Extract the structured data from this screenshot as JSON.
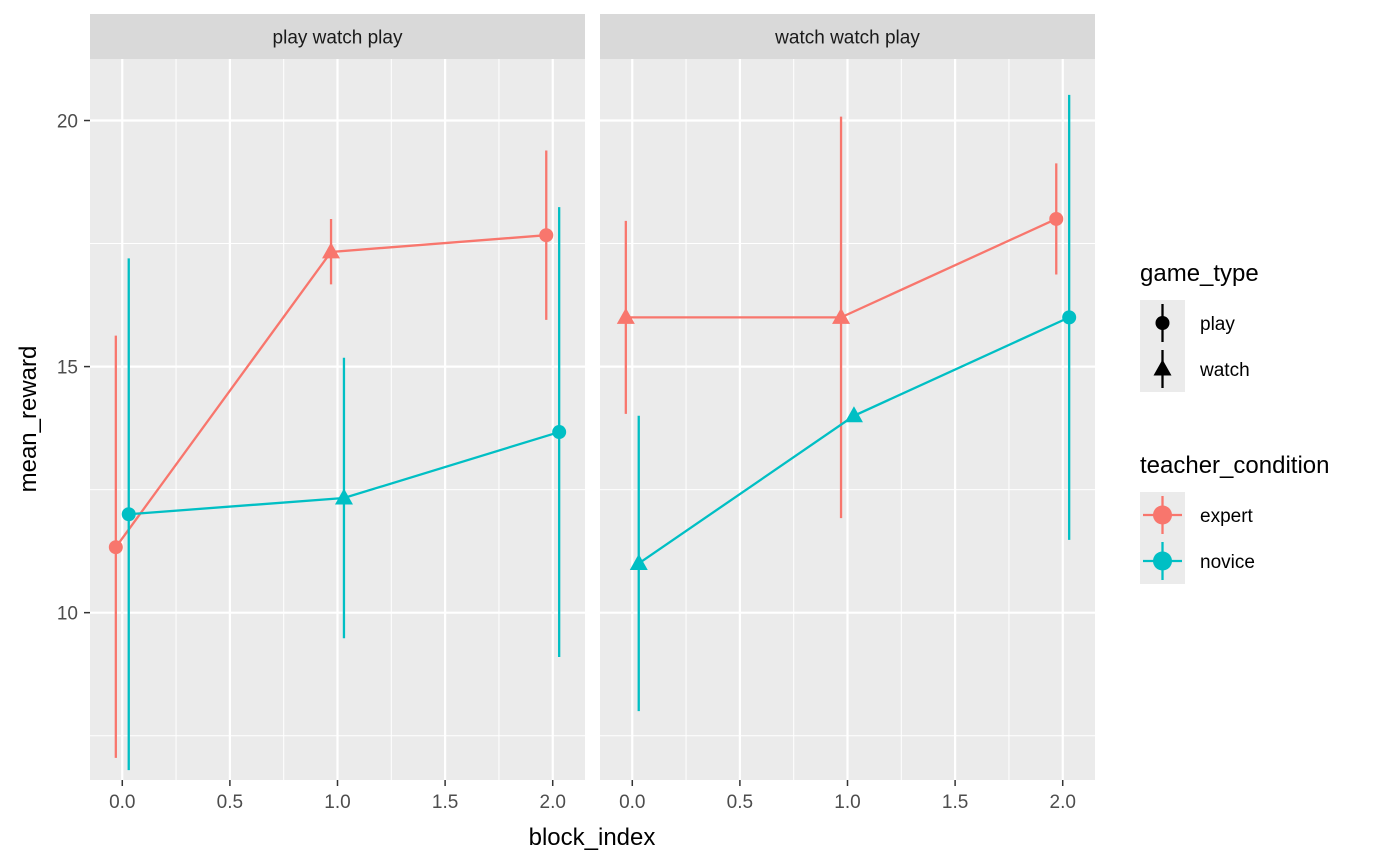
{
  "chart_data": {
    "type": "line",
    "xlabel": "block_index",
    "ylabel": "mean_reward",
    "xlim": [
      -0.15,
      2.15
    ],
    "ylim": [
      6.6,
      21.25
    ],
    "x_ticks": [
      0,
      0.5,
      1,
      1.5,
      2
    ],
    "x_tick_labels": [
      "0.0",
      "0.5",
      "1.0",
      "1.5",
      "2.0"
    ],
    "y_ticks": [
      10,
      15,
      20
    ],
    "y_tick_labels": [
      "10",
      "15",
      "20"
    ],
    "grid": true,
    "facets": [
      {
        "label": "play watch play",
        "series": [
          {
            "name": "expert",
            "points": [
              {
                "x": 0,
                "y": 11.33,
                "lo": 7.05,
                "hi": 15.63,
                "game_type": "play"
              },
              {
                "x": 1,
                "y": 17.33,
                "lo": 16.67,
                "hi": 18.0,
                "game_type": "watch"
              },
              {
                "x": 2,
                "y": 17.67,
                "lo": 15.95,
                "hi": 19.39,
                "game_type": "play"
              }
            ]
          },
          {
            "name": "novice",
            "points": [
              {
                "x": 0,
                "y": 12.0,
                "lo": 6.8,
                "hi": 17.2,
                "game_type": "play"
              },
              {
                "x": 1,
                "y": 12.33,
                "lo": 9.48,
                "hi": 15.18,
                "game_type": "watch"
              },
              {
                "x": 2,
                "y": 13.67,
                "lo": 9.1,
                "hi": 18.24,
                "game_type": "play"
              }
            ]
          }
        ]
      },
      {
        "label": "watch watch play",
        "series": [
          {
            "name": "expert",
            "points": [
              {
                "x": 0,
                "y": 16.0,
                "lo": 14.04,
                "hi": 17.96,
                "game_type": "watch"
              },
              {
                "x": 1,
                "y": 16.0,
                "lo": 11.92,
                "hi": 20.08,
                "game_type": "watch"
              },
              {
                "x": 2,
                "y": 18.0,
                "lo": 16.87,
                "hi": 19.13,
                "game_type": "play"
              }
            ]
          },
          {
            "name": "novice",
            "points": [
              {
                "x": 0,
                "y": 11.0,
                "lo": 8.0,
                "hi": 14.0,
                "game_type": "watch"
              },
              {
                "x": 1,
                "y": 14.0,
                "lo": 14.0,
                "hi": 14.0,
                "game_type": "watch"
              },
              {
                "x": 2,
                "y": 16.0,
                "lo": 11.48,
                "hi": 20.52,
                "game_type": "play"
              }
            ]
          }
        ]
      }
    ],
    "legends": [
      {
        "title": "game_type",
        "placement": "right",
        "entries": [
          {
            "label": "play",
            "shape": "circle",
            "color": "#000000"
          },
          {
            "label": "watch",
            "shape": "triangle",
            "color": "#000000"
          }
        ]
      },
      {
        "title": "teacher_condition",
        "placement": "right",
        "entries": [
          {
            "label": "expert",
            "shape": "circle",
            "color": "#F8766D"
          },
          {
            "label": "novice",
            "shape": "circle",
            "color": "#00BFC4"
          }
        ]
      }
    ],
    "colors": {
      "expert": "#F8766D",
      "novice": "#00BFC4",
      "panel_background": "#EBEBEB",
      "strip_background": "#D9D9D9",
      "grid": "#FFFFFF"
    }
  }
}
